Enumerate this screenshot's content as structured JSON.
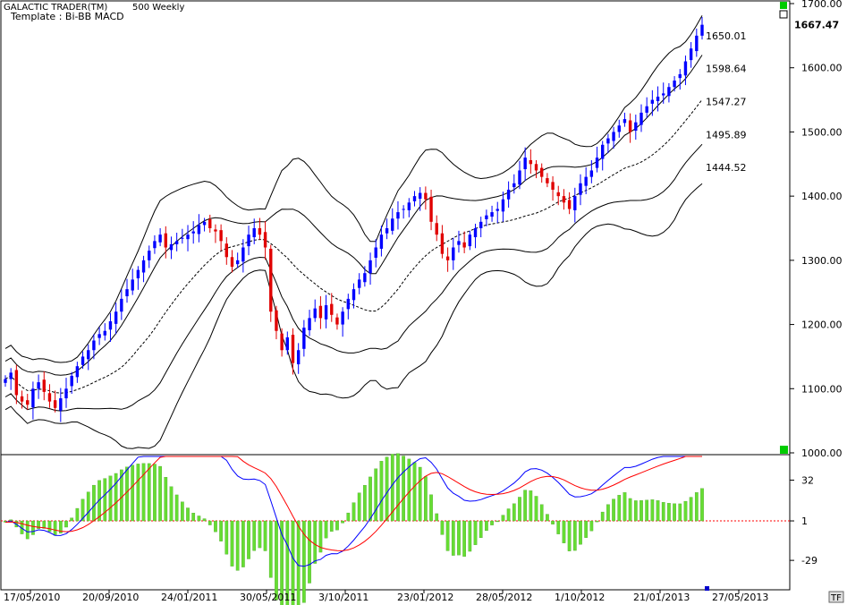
{
  "app_title": "GALACTIC TRADER(TM)",
  "symbol_label": "500 Weekly",
  "template_label": "Template : Bi-BB MACD",
  "tf_button": "TF",
  "colors": {
    "up_candle": "#0000ff",
    "down_candle": "#e00000",
    "band_line": "#000000",
    "macd_line": "#0000ff",
    "signal_line": "#ff0000",
    "histogram": "#66dd33",
    "zero_line": "#ff0000",
    "grid_bg": "#ffffff",
    "marker_green": "#00cc00"
  },
  "chart_data": [
    {
      "type": "candlestick",
      "name": "price",
      "y_tick_labels": [
        "1700.00",
        "1600.00",
        "1500.00",
        "1400.00",
        "1300.00",
        "1200.00",
        "1100.00",
        "1000.00"
      ],
      "ylim": [
        1000,
        1700
      ],
      "last_price_label": "1667.47",
      "band_labels": [
        "1650.01",
        "1598.64",
        "1547.27",
        "1495.89",
        "1444.52"
      ],
      "x_tick_labels": [
        "17/05/2010",
        "20/09/2010",
        "24/01/2011",
        "30/05/2011",
        "3/10/2011",
        "23/01/2012",
        "28/05/2012",
        "1/10/2012",
        "21/01/2013",
        "27/05/2013"
      ],
      "closes": [
        1115,
        1125,
        1090,
        1080,
        1075,
        1100,
        1110,
        1095,
        1080,
        1070,
        1085,
        1100,
        1120,
        1135,
        1150,
        1160,
        1175,
        1185,
        1190,
        1205,
        1220,
        1240,
        1255,
        1270,
        1285,
        1300,
        1315,
        1330,
        1340,
        1320,
        1325,
        1330,
        1335,
        1340,
        1345,
        1355,
        1360,
        1350,
        1345,
        1330,
        1305,
        1290,
        1300,
        1320,
        1340,
        1350,
        1340,
        1320,
        1220,
        1190,
        1160,
        1180,
        1140,
        1160,
        1195,
        1210,
        1225,
        1210,
        1230,
        1215,
        1200,
        1220,
        1240,
        1255,
        1270,
        1280,
        1300,
        1320,
        1340,
        1350,
        1365,
        1375,
        1380,
        1390,
        1400,
        1405,
        1395,
        1360,
        1340,
        1310,
        1300,
        1320,
        1330,
        1320,
        1340,
        1350,
        1360,
        1370,
        1375,
        1380,
        1395,
        1410,
        1420,
        1440,
        1460,
        1450,
        1440,
        1430,
        1420,
        1410,
        1400,
        1390,
        1380,
        1400,
        1420,
        1430,
        1440,
        1460,
        1480,
        1490,
        1500,
        1510,
        1520,
        1500,
        1515,
        1530,
        1540,
        1550,
        1555,
        1560,
        1570,
        1580,
        1590,
        1610,
        1630,
        1650,
        1667
      ]
    },
    {
      "type": "line",
      "name": "macd",
      "y_tick_labels": [
        "32",
        "1",
        "-29"
      ],
      "ylim": [
        -50,
        50
      ]
    }
  ]
}
